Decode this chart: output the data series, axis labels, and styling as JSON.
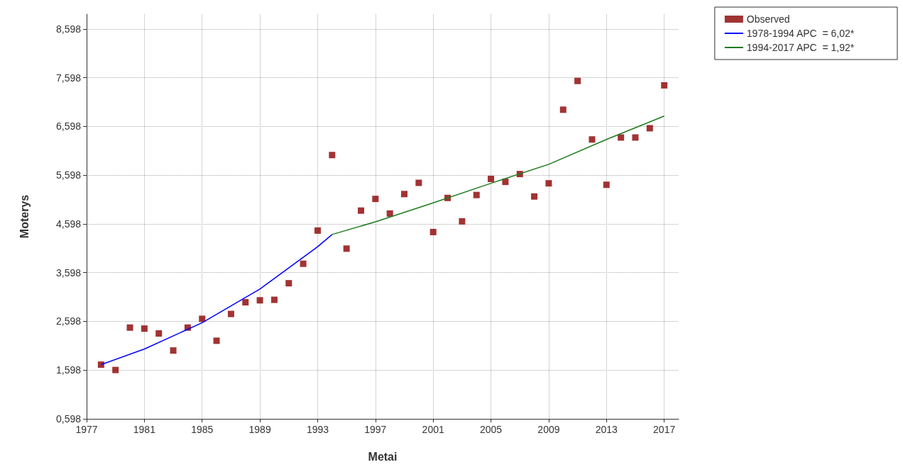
{
  "chart_data": {
    "type": "scatter",
    "xlabel": "Metai",
    "ylabel": "Moterys",
    "xlim": [
      1977,
      2018
    ],
    "xticks": [
      1977,
      1981,
      1985,
      1989,
      1993,
      1997,
      2001,
      2005,
      2009,
      2013,
      2017
    ],
    "ylim": [
      0.598,
      8.9
    ],
    "yticks": [
      {
        "value": 0.598,
        "label": "0,598"
      },
      {
        "value": 1.598,
        "label": "1,598"
      },
      {
        "value": 2.598,
        "label": "2,598"
      },
      {
        "value": 3.598,
        "label": "3,598"
      },
      {
        "value": 4.598,
        "label": "4,598"
      },
      {
        "value": 5.598,
        "label": "5,598"
      },
      {
        "value": 6.598,
        "label": "6,598"
      },
      {
        "value": 7.598,
        "label": "7,598"
      },
      {
        "value": 8.598,
        "label": "8,598"
      }
    ],
    "grid": true,
    "legend": "top right",
    "line_style": "solid",
    "series": [
      {
        "name": "Observed",
        "marker": "square",
        "color": "#8b0000",
        "x": [
          1978,
          1979,
          1980,
          1981,
          1982,
          1983,
          1984,
          1985,
          1986,
          1987,
          1988,
          1989,
          1990,
          1991,
          1992,
          1993,
          1994,
          1995,
          1996,
          1997,
          1998,
          1999,
          2000,
          2001,
          2002,
          2003,
          2004,
          2005,
          2006,
          2007,
          2008,
          2009,
          2010,
          2011,
          2012,
          2013,
          2014,
          2015,
          2016,
          2017
        ],
        "values": [
          1.71,
          1.6,
          2.47,
          2.45,
          2.35,
          2.0,
          2.47,
          2.65,
          2.2,
          2.75,
          2.99,
          3.03,
          3.04,
          3.38,
          3.78,
          4.46,
          6.01,
          4.09,
          4.87,
          5.11,
          4.81,
          5.21,
          5.44,
          4.43,
          5.13,
          4.65,
          5.19,
          5.52,
          5.46,
          5.62,
          5.16,
          5.43,
          6.94,
          7.53,
          6.33,
          5.4,
          6.37,
          6.37,
          6.56,
          7.44
        ]
      },
      {
        "name": "1978-1994 APC  = 6,02*",
        "type": "line",
        "marker": "none",
        "color": "#0000ff",
        "x": [
          1978,
          1981,
          1985,
          1989,
          1993,
          1994
        ],
        "values": [
          1.71,
          2.03,
          2.57,
          3.26,
          4.13,
          4.38
        ]
      },
      {
        "name": "1994-2017 APC  = 1,92*",
        "type": "line",
        "marker": "none",
        "color": "#1e7b1e",
        "x": [
          1994,
          1997,
          2001,
          2005,
          2009,
          2013,
          2017
        ],
        "values": [
          4.38,
          4.64,
          5.03,
          5.43,
          5.82,
          6.33,
          6.81
        ]
      }
    ]
  }
}
